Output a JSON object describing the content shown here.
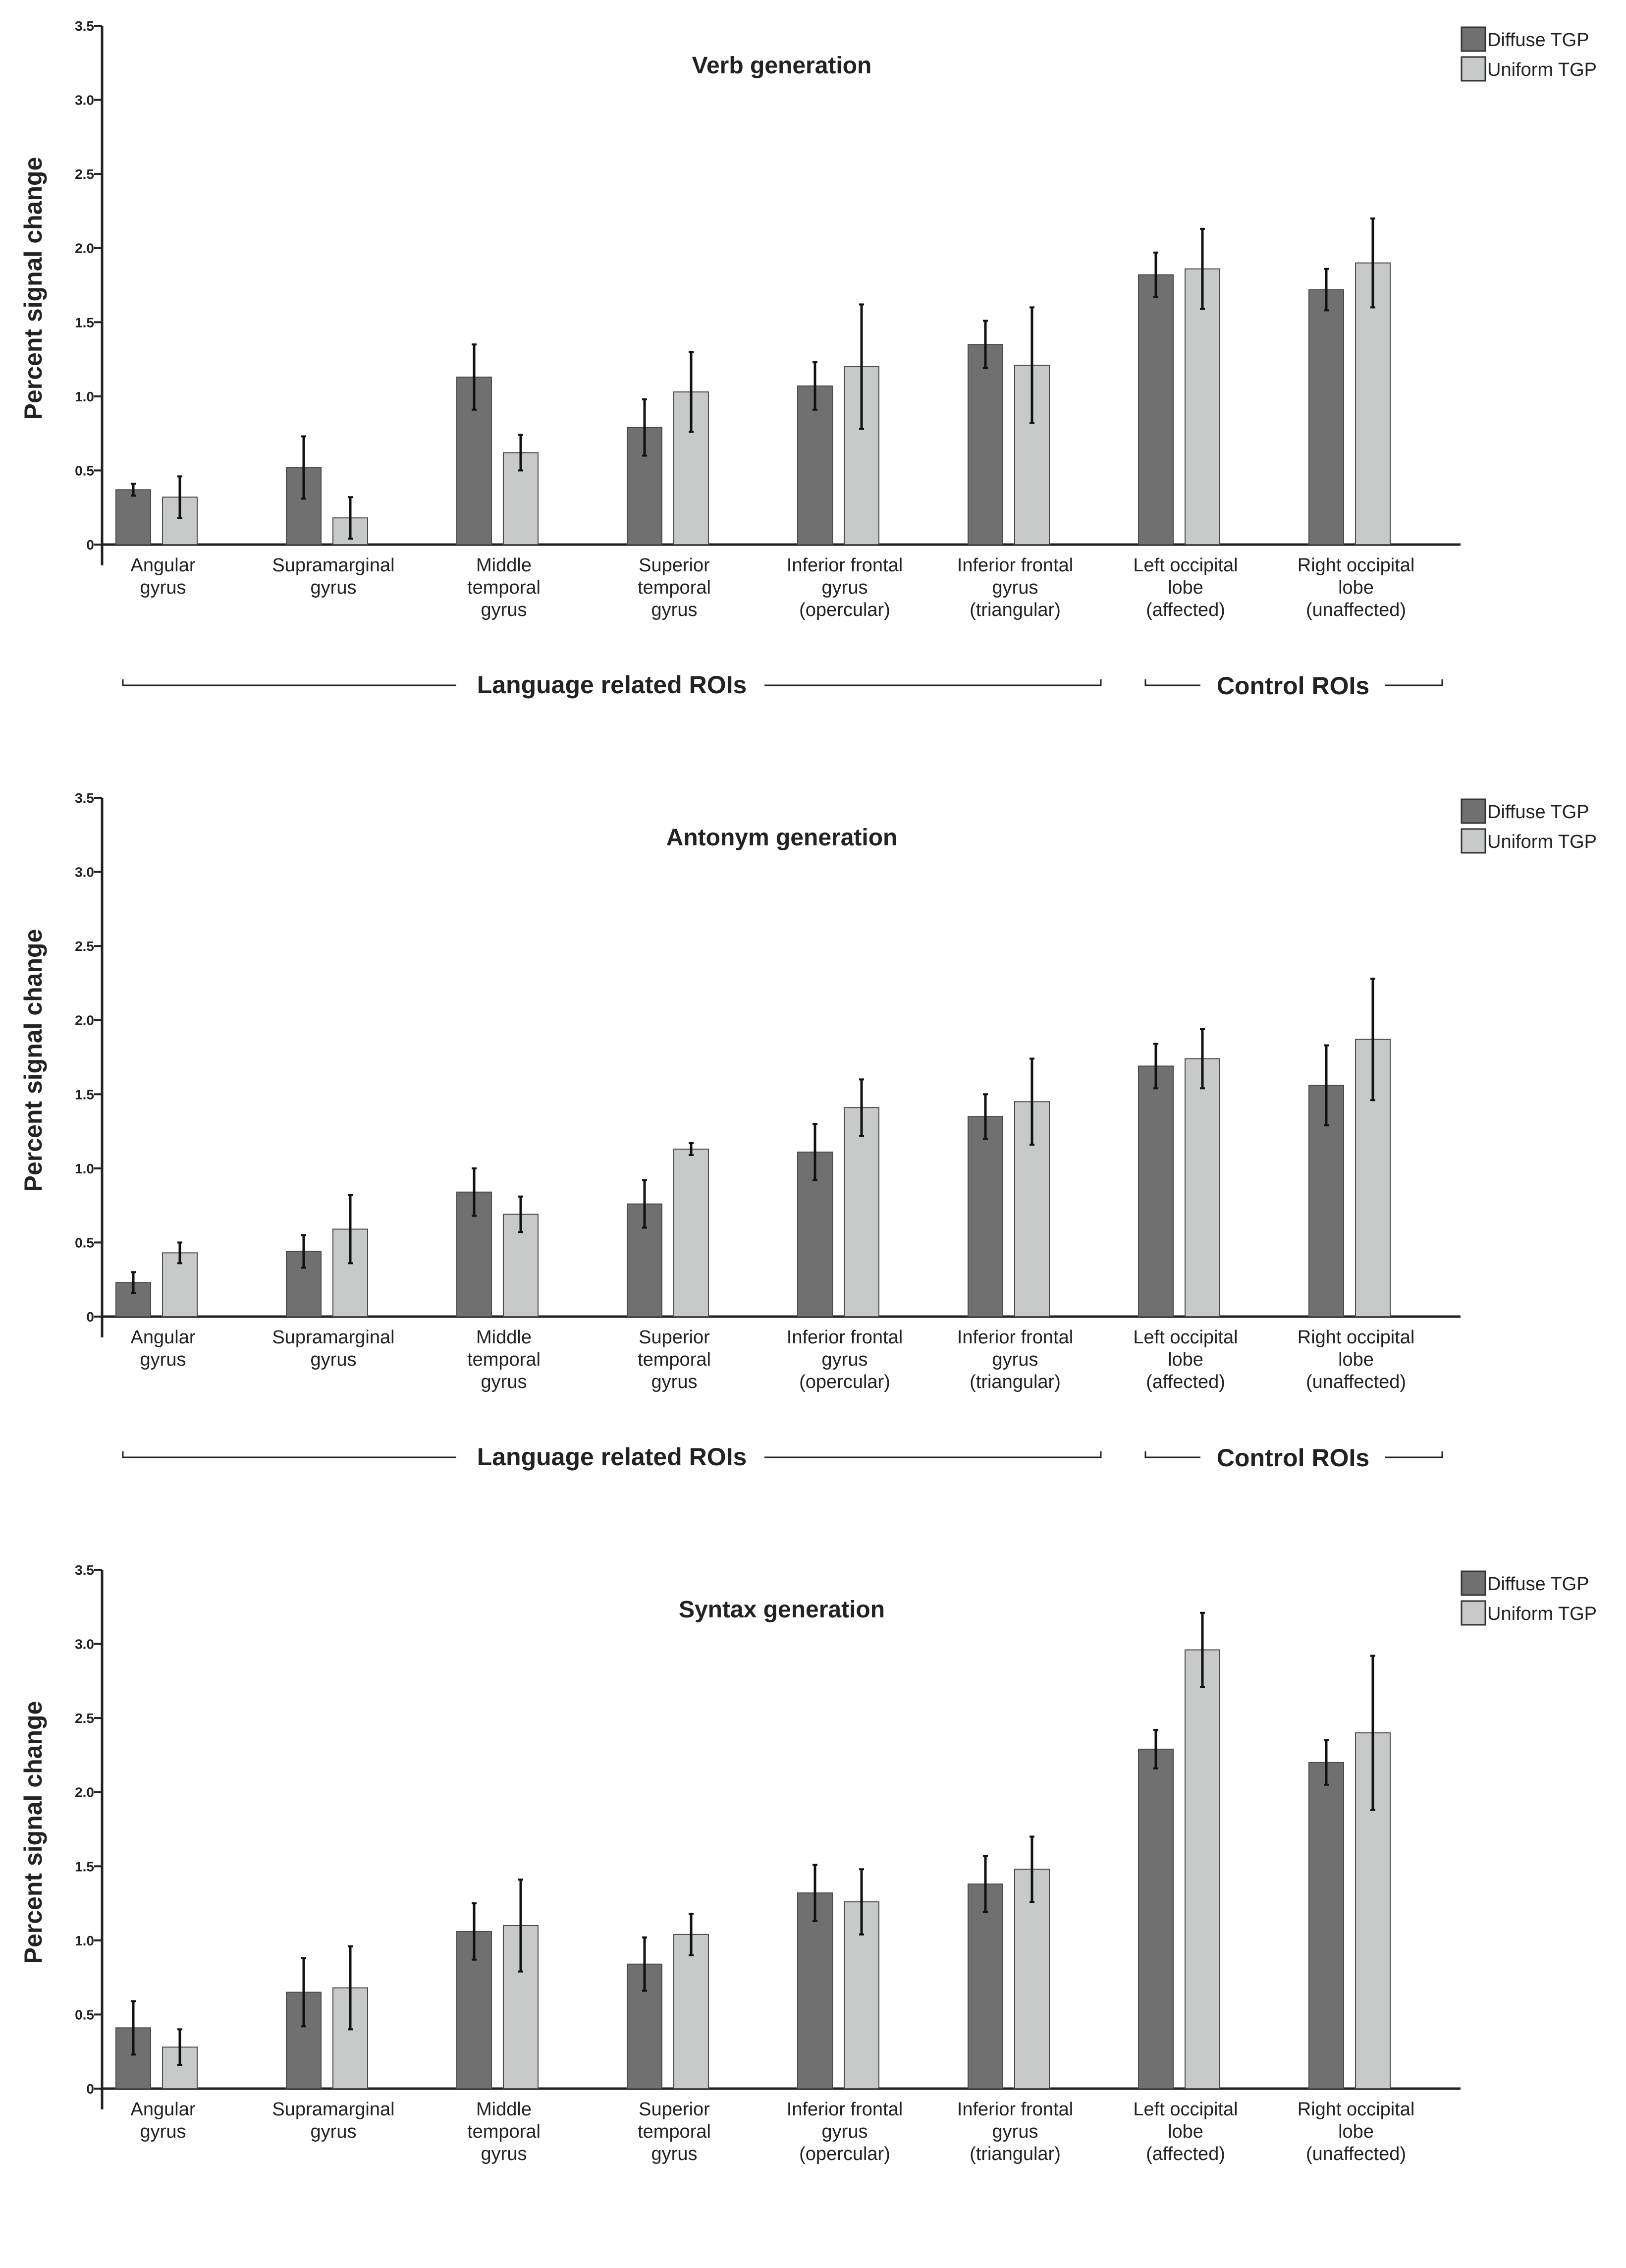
{
  "colors": {
    "diffuse": "#707070",
    "uniform": "#c8cac9",
    "bar_edge": "#4a4a4a",
    "axis": "#222222",
    "text": "#222222"
  },
  "chart_data": [
    {
      "type": "bar",
      "title": "Verb generation",
      "xlabel": "",
      "ylabel": "Percent signal change",
      "ylim": [
        0,
        3.5
      ],
      "yticks": [
        "0",
        "0.5",
        "1.0",
        "1.5",
        "2.0",
        "2.5",
        "3.0",
        "3.5"
      ],
      "grid": false,
      "legend_position": "top-right",
      "categories": [
        [
          "Angular",
          "gyrus"
        ],
        [
          "Supramarginal",
          "gyrus"
        ],
        [
          "Middle",
          "temporal",
          "gyrus"
        ],
        [
          "Superior",
          "temporal",
          "gyrus"
        ],
        [
          "Inferior frontal",
          "gyrus",
          "(opercular)"
        ],
        [
          "Inferior frontal",
          "gyrus",
          "(triangular)"
        ],
        [
          "Left occipital",
          "lobe",
          "(affected)"
        ],
        [
          "Right occipital",
          "lobe",
          "(unaffected)"
        ]
      ],
      "series": [
        {
          "name": "Diffuse TGP",
          "color_key": "diffuse",
          "values": [
            0.37,
            0.52,
            1.13,
            0.79,
            1.07,
            1.35,
            1.82,
            1.72
          ],
          "errors": [
            0.04,
            0.21,
            0.22,
            0.19,
            0.16,
            0.16,
            0.15,
            0.14
          ]
        },
        {
          "name": "Uniform TGP",
          "color_key": "uniform",
          "values": [
            0.32,
            0.18,
            0.62,
            1.03,
            1.2,
            1.21,
            1.86,
            1.9
          ],
          "errors": [
            0.14,
            0.14,
            0.12,
            0.27,
            0.42,
            0.39,
            0.27,
            0.3
          ]
        }
      ],
      "groups": [
        {
          "label": "Language related ROIs",
          "from": 0,
          "to": 5
        },
        {
          "label": "Control ROIs",
          "from": 6,
          "to": 7
        }
      ]
    },
    {
      "type": "bar",
      "title": "Antonym generation",
      "xlabel": "",
      "ylabel": "Percent signal change",
      "ylim": [
        0,
        3.5
      ],
      "yticks": [
        "0",
        "0.5",
        "1.0",
        "1.5",
        "2.0",
        "2.5",
        "3.0",
        "3.5"
      ],
      "grid": false,
      "legend_position": "top-right",
      "categories": [
        [
          "Angular",
          "gyrus"
        ],
        [
          "Supramarginal",
          "gyrus"
        ],
        [
          "Middle",
          "temporal",
          "gyrus"
        ],
        [
          "Superior",
          "temporal",
          "gyrus"
        ],
        [
          "Inferior frontal",
          "gyrus",
          "(opercular)"
        ],
        [
          "Inferior frontal",
          "gyrus",
          "(triangular)"
        ],
        [
          "Left occipital",
          "lobe",
          "(affected)"
        ],
        [
          "Right occipital",
          "lobe",
          "(unaffected)"
        ]
      ],
      "series": [
        {
          "name": "Diffuse TGP",
          "color_key": "diffuse",
          "values": [
            0.23,
            0.44,
            0.84,
            0.76,
            1.11,
            1.35,
            1.69,
            1.56
          ],
          "errors": [
            0.07,
            0.11,
            0.16,
            0.16,
            0.19,
            0.15,
            0.15,
            0.27
          ]
        },
        {
          "name": "Uniform TGP",
          "color_key": "uniform",
          "values": [
            0.43,
            0.59,
            0.69,
            1.13,
            1.41,
            1.45,
            1.74,
            1.87
          ],
          "errors": [
            0.07,
            0.23,
            0.12,
            0.04,
            0.19,
            0.29,
            0.2,
            0.41
          ]
        }
      ],
      "groups": [
        {
          "label": "Language related ROIs",
          "from": 0,
          "to": 5
        },
        {
          "label": "Control ROIs",
          "from": 6,
          "to": 7
        }
      ]
    },
    {
      "type": "bar",
      "title": "Syntax generation",
      "xlabel": "",
      "ylabel": "Percent signal change",
      "ylim": [
        0,
        3.5
      ],
      "yticks": [
        "0",
        "0.5",
        "1.0",
        "1.5",
        "2.0",
        "2.5",
        "3.0",
        "3.5"
      ],
      "grid": false,
      "legend_position": "top-right",
      "categories": [
        [
          "Angular",
          "gyrus"
        ],
        [
          "Supramarginal",
          "gyrus"
        ],
        [
          "Middle",
          "temporal",
          "gyrus"
        ],
        [
          "Superior",
          "temporal",
          "gyrus"
        ],
        [
          "Inferior frontal",
          "gyrus",
          "(opercular)"
        ],
        [
          "Inferior frontal",
          "gyrus",
          "(triangular)"
        ],
        [
          "Left occipital",
          "lobe",
          "(affected)"
        ],
        [
          "Right occipital",
          "lobe",
          "(unaffected)"
        ]
      ],
      "series": [
        {
          "name": "Diffuse TGP",
          "color_key": "diffuse",
          "values": [
            0.41,
            0.65,
            1.06,
            0.84,
            1.32,
            1.38,
            2.29,
            2.2
          ],
          "errors": [
            0.18,
            0.23,
            0.19,
            0.18,
            0.19,
            0.19,
            0.13,
            0.15
          ]
        },
        {
          "name": "Uniform TGP",
          "color_key": "uniform",
          "values": [
            0.28,
            0.68,
            1.1,
            1.04,
            1.26,
            1.48,
            2.96,
            2.4
          ],
          "errors": [
            0.12,
            0.28,
            0.31,
            0.14,
            0.22,
            0.22,
            0.25,
            0.52
          ]
        }
      ],
      "groups": []
    }
  ]
}
